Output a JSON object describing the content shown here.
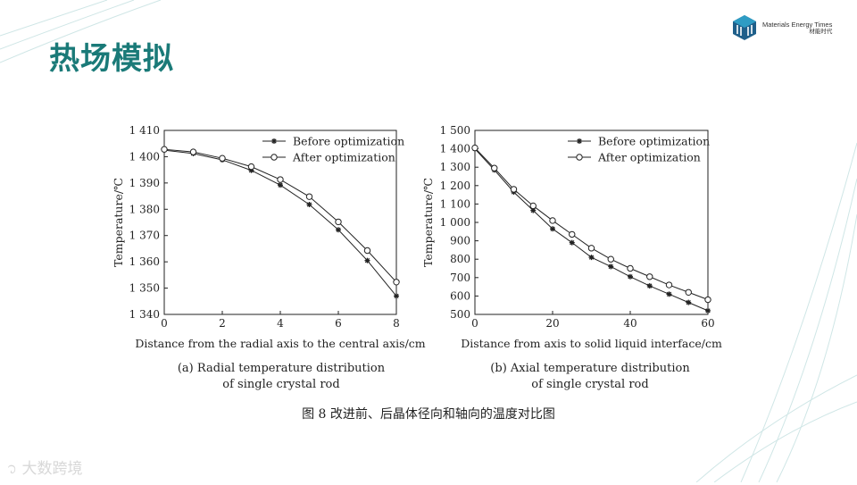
{
  "slide": {
    "title": "热场模拟",
    "logo_en": "Materials Energy Times",
    "logo_cn": "材能时代",
    "figure_caption": "图 8    改进前、后晶体径向和轴向的温度对比图",
    "watermark": "大数跨境",
    "colors": {
      "title": "#1a7a78",
      "logo_accent": "#2e9cc4",
      "series": "#222222"
    }
  },
  "chart_data": [
    {
      "type": "line",
      "xlabel": "Distance from the radial axis to the central axis/cm",
      "ylabel": "Temperature/℃",
      "caption_lines": [
        "(a) Radial temperature distribution",
        "of single crystal rod"
      ],
      "xlim": [
        0,
        8
      ],
      "ylim": [
        1340,
        1410
      ],
      "xticks": [
        0,
        2,
        4,
        6,
        8
      ],
      "yticks": [
        1340,
        1350,
        1360,
        1370,
        1380,
        1390,
        1400,
        1410
      ],
      "ytick_labels": [
        "1 340",
        "1 350",
        "1 360",
        "1 370",
        "1 380",
        "1 390",
        "1 400",
        "1 410"
      ],
      "legend_position": "top-right",
      "series": [
        {
          "name": "Before optimization",
          "marker": "star",
          "x": [
            0,
            1,
            2,
            3,
            4,
            5,
            6,
            7,
            8
          ],
          "y": [
            1402.5,
            1401.2,
            1398.8,
            1394.8,
            1389.2,
            1381.8,
            1372.2,
            1360.5,
            1347
          ]
        },
        {
          "name": "After optimization",
          "marker": "circle",
          "x": [
            0,
            1,
            2,
            3,
            4,
            5,
            6,
            7,
            8
          ],
          "y": [
            1402.8,
            1401.8,
            1399.4,
            1396.2,
            1391.3,
            1384.8,
            1375.2,
            1364.3,
            1352.3
          ]
        }
      ]
    },
    {
      "type": "line",
      "xlabel": "Distance from axis to solid liquid interface/cm",
      "ylabel": "Temperature/℃",
      "caption_lines": [
        "(b) Axial temperature distribution",
        "of single crystal rod"
      ],
      "xlim": [
        0,
        60
      ],
      "ylim": [
        500,
        1500
      ],
      "xticks": [
        0,
        20,
        40,
        60
      ],
      "yticks": [
        500,
        600,
        700,
        800,
        900,
        1000,
        1100,
        1200,
        1300,
        1400,
        1500
      ],
      "ytick_labels": [
        "500",
        "600",
        "700",
        "800",
        "900",
        "1 000",
        "1 100",
        "1 200",
        "1 300",
        "1 400",
        "1 500"
      ],
      "legend_position": "top-right",
      "series": [
        {
          "name": "Before optimization",
          "marker": "star",
          "x": [
            0,
            5,
            10,
            15,
            20,
            25,
            30,
            35,
            40,
            45,
            50,
            55,
            60
          ],
          "y": [
            1400,
            1285,
            1165,
            1065,
            965,
            890,
            810,
            760,
            705,
            655,
            610,
            565,
            520
          ]
        },
        {
          "name": "After optimization",
          "marker": "circle",
          "x": [
            0,
            5,
            10,
            15,
            20,
            25,
            30,
            35,
            40,
            45,
            50,
            55,
            60
          ],
          "y": [
            1405,
            1295,
            1180,
            1090,
            1010,
            935,
            860,
            800,
            750,
            705,
            660,
            620,
            580
          ]
        }
      ]
    }
  ]
}
